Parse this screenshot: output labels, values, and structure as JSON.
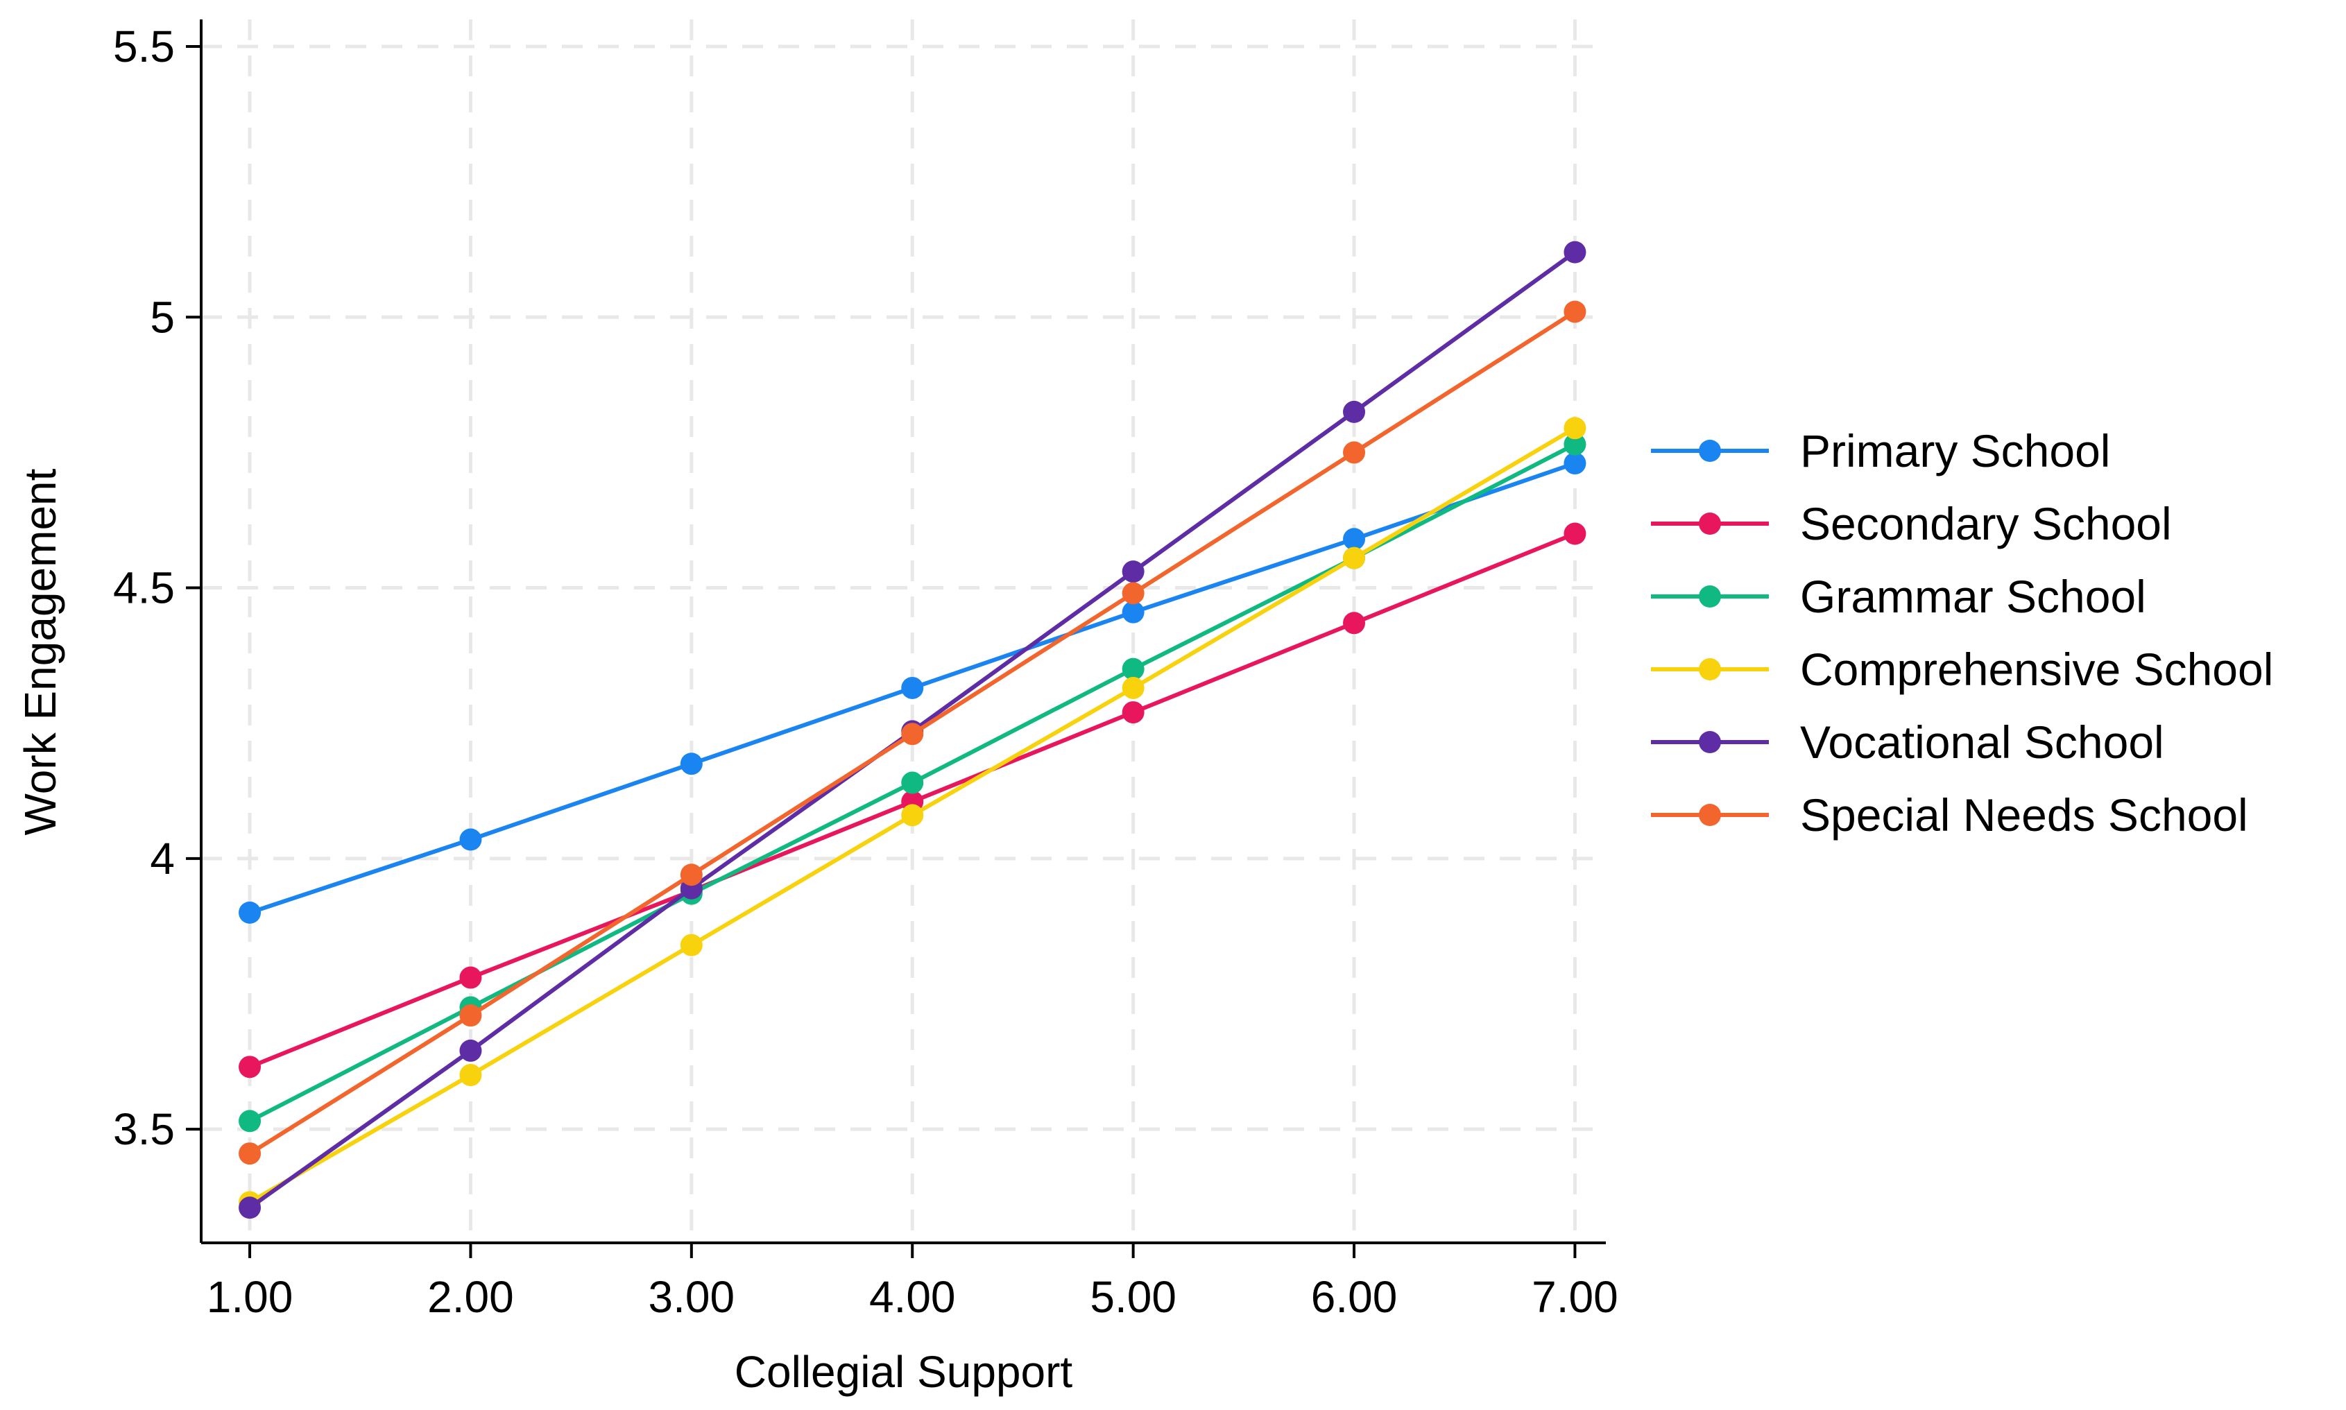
{
  "chart_data": {
    "type": "line",
    "title": "",
    "xlabel": "Collegial Support",
    "ylabel": "Work Engagement",
    "x": [
      1,
      2,
      3,
      4,
      5,
      6,
      7
    ],
    "x_tick_labels": [
      "1.00",
      "2.00",
      "3.00",
      "4.00",
      "5.00",
      "6.00",
      "7.00"
    ],
    "y_ticks": [
      3.5,
      4,
      4.5,
      5,
      5.5
    ],
    "y_tick_labels": [
      "3.5",
      "4",
      "4.5",
      "5",
      "5.5"
    ],
    "xlim": [
      0.78,
      7.14
    ],
    "ylim": [
      3.29,
      5.55
    ],
    "grid": true,
    "legend_position": "right",
    "series": [
      {
        "name": "Primary School",
        "color": "#1a85f0",
        "values": [
          3.9,
          4.035,
          4.175,
          4.315,
          4.455,
          4.59,
          4.73
        ]
      },
      {
        "name": "Secondary School",
        "color": "#e8175d",
        "values": [
          3.615,
          3.78,
          3.94,
          4.105,
          4.27,
          4.435,
          4.6
        ]
      },
      {
        "name": "Grammar School",
        "color": "#10b981",
        "values": [
          3.515,
          3.725,
          3.935,
          4.14,
          4.35,
          4.555,
          4.765
        ]
      },
      {
        "name": "Comprehensive School",
        "color": "#f8d20c",
        "values": [
          3.365,
          3.6,
          3.84,
          4.08,
          4.315,
          4.555,
          4.795
        ]
      },
      {
        "name": "Vocational School",
        "color": "#5e2ca5",
        "values": [
          3.355,
          3.645,
          3.945,
          4.235,
          4.53,
          4.825,
          5.12
        ]
      },
      {
        "name": "Special Needs School",
        "color": "#f2652c",
        "values": [
          3.455,
          3.71,
          3.97,
          4.23,
          4.49,
          4.75,
          5.01
        ]
      }
    ]
  }
}
